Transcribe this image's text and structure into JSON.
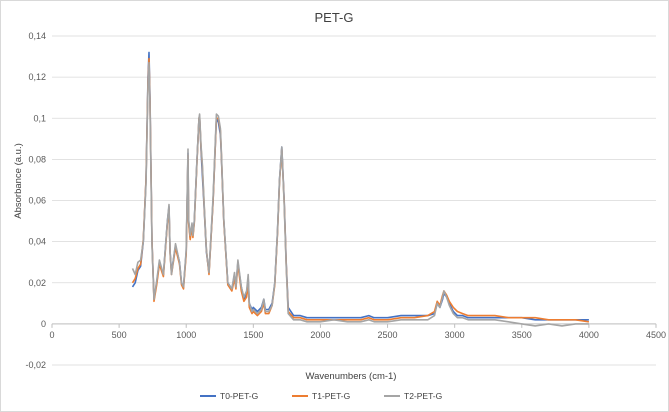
{
  "chart_data": {
    "type": "line",
    "title": "PET-G",
    "xlabel": "Wavenumbers (cm-1)",
    "ylabel": "Absorbance (a.u.)",
    "xlim": [
      0,
      4500
    ],
    "ylim": [
      -0.02,
      0.14
    ],
    "xticks": [
      0,
      500,
      1000,
      1500,
      2000,
      2500,
      3000,
      3500,
      4000,
      4500
    ],
    "xtick_labels": [
      "0",
      "500",
      "1000",
      "1500",
      "2000",
      "2500",
      "3000",
      "3500",
      "4000",
      "4500"
    ],
    "yticks": [
      -0.02,
      0,
      0.02,
      0.04,
      0.06,
      0.08,
      0.1,
      0.12,
      0.14
    ],
    "ytick_labels": [
      "-0,02",
      "0",
      "0,02",
      "0,04",
      "0,06",
      "0,08",
      "0,1",
      "0,12",
      "0,14"
    ],
    "grid": "horizontal",
    "legend_position": "bottom",
    "x": [
      600,
      620,
      640,
      660,
      680,
      700,
      715,
      723,
      730,
      745,
      760,
      780,
      800,
      830,
      860,
      872,
      880,
      890,
      920,
      950,
      965,
      980,
      1000,
      1013,
      1018,
      1030,
      1043,
      1050,
      1060,
      1080,
      1095,
      1100,
      1110,
      1120,
      1135,
      1150,
      1170,
      1200,
      1225,
      1240,
      1255,
      1260,
      1280,
      1310,
      1340,
      1360,
      1370,
      1385,
      1395,
      1410,
      1430,
      1450,
      1462,
      1470,
      1490,
      1500,
      1530,
      1560,
      1578,
      1590,
      1615,
      1640,
      1660,
      1680,
      1695,
      1712,
      1730,
      1745,
      1760,
      1800,
      1850,
      1900,
      2000,
      2100,
      2200,
      2300,
      2360,
      2400,
      2500,
      2600,
      2700,
      2800,
      2850,
      2870,
      2890,
      2910,
      2920,
      2940,
      2960,
      2990,
      3020,
      3060,
      3100,
      3200,
      3300,
      3400,
      3500,
      3600,
      3700,
      3800,
      3900,
      4000
    ],
    "series": [
      {
        "name": "T0-PET-G",
        "color": "#4472c4",
        "values": [
          0.018,
          0.02,
          0.026,
          0.028,
          0.04,
          0.07,
          0.12,
          0.132,
          0.11,
          0.04,
          0.012,
          0.02,
          0.03,
          0.024,
          0.05,
          0.057,
          0.035,
          0.025,
          0.038,
          0.03,
          0.02,
          0.018,
          0.035,
          0.083,
          0.05,
          0.042,
          0.048,
          0.043,
          0.05,
          0.08,
          0.1,
          0.101,
          0.085,
          0.073,
          0.055,
          0.035,
          0.025,
          0.06,
          0.1,
          0.098,
          0.092,
          0.085,
          0.05,
          0.02,
          0.017,
          0.024,
          0.018,
          0.03,
          0.025,
          0.018,
          0.012,
          0.015,
          0.022,
          0.01,
          0.007,
          0.008,
          0.006,
          0.008,
          0.012,
          0.007,
          0.007,
          0.01,
          0.02,
          0.045,
          0.07,
          0.086,
          0.06,
          0.03,
          0.008,
          0.004,
          0.004,
          0.003,
          0.003,
          0.003,
          0.003,
          0.003,
          0.004,
          0.003,
          0.003,
          0.004,
          0.004,
          0.004,
          0.005,
          0.01,
          0.008,
          0.012,
          0.015,
          0.013,
          0.01,
          0.006,
          0.004,
          0.004,
          0.003,
          0.003,
          0.003,
          0.003,
          0.003,
          0.002,
          0.002,
          0.002,
          0.002,
          0.002
        ]
      },
      {
        "name": "T1-PET-G",
        "color": "#ed7d31",
        "values": [
          0.02,
          0.022,
          0.027,
          0.029,
          0.041,
          0.07,
          0.118,
          0.129,
          0.108,
          0.04,
          0.011,
          0.019,
          0.029,
          0.023,
          0.049,
          0.056,
          0.034,
          0.024,
          0.037,
          0.029,
          0.019,
          0.017,
          0.034,
          0.082,
          0.049,
          0.041,
          0.047,
          0.042,
          0.049,
          0.079,
          0.1,
          0.101,
          0.086,
          0.077,
          0.056,
          0.036,
          0.024,
          0.06,
          0.1,
          0.1,
          0.094,
          0.086,
          0.05,
          0.019,
          0.016,
          0.022,
          0.017,
          0.029,
          0.024,
          0.016,
          0.011,
          0.013,
          0.02,
          0.008,
          0.005,
          0.006,
          0.004,
          0.006,
          0.01,
          0.005,
          0.005,
          0.009,
          0.019,
          0.044,
          0.069,
          0.085,
          0.059,
          0.029,
          0.006,
          0.003,
          0.003,
          0.002,
          0.002,
          0.002,
          0.002,
          0.002,
          0.003,
          0.002,
          0.002,
          0.003,
          0.003,
          0.004,
          0.006,
          0.011,
          0.009,
          0.014,
          0.016,
          0.014,
          0.011,
          0.008,
          0.006,
          0.005,
          0.004,
          0.004,
          0.004,
          0.003,
          0.003,
          0.003,
          0.002,
          0.002,
          0.002,
          0.001
        ]
      },
      {
        "name": "T2-PET-G",
        "color": "#a5a5a5",
        "values": [
          0.027,
          0.024,
          0.03,
          0.031,
          0.04,
          0.068,
          0.116,
          0.127,
          0.106,
          0.038,
          0.012,
          0.021,
          0.031,
          0.024,
          0.05,
          0.058,
          0.035,
          0.024,
          0.039,
          0.03,
          0.02,
          0.018,
          0.036,
          0.085,
          0.051,
          0.043,
          0.049,
          0.043,
          0.05,
          0.08,
          0.1,
          0.102,
          0.087,
          0.078,
          0.057,
          0.036,
          0.025,
          0.062,
          0.102,
          0.101,
          0.095,
          0.087,
          0.051,
          0.02,
          0.017,
          0.025,
          0.018,
          0.031,
          0.026,
          0.018,
          0.013,
          0.016,
          0.024,
          0.01,
          0.006,
          0.007,
          0.005,
          0.007,
          0.012,
          0.006,
          0.006,
          0.009,
          0.02,
          0.045,
          0.07,
          0.086,
          0.058,
          0.028,
          0.005,
          0.002,
          0.002,
          0.001,
          0.001,
          0.002,
          0.001,
          0.001,
          0.002,
          0.001,
          0.001,
          0.002,
          0.002,
          0.002,
          0.004,
          0.01,
          0.008,
          0.013,
          0.016,
          0.013,
          0.009,
          0.005,
          0.003,
          0.003,
          0.002,
          0.002,
          0.002,
          0.001,
          0.0,
          -0.001,
          0.0,
          -0.001,
          0.0,
          0.0
        ]
      }
    ]
  }
}
